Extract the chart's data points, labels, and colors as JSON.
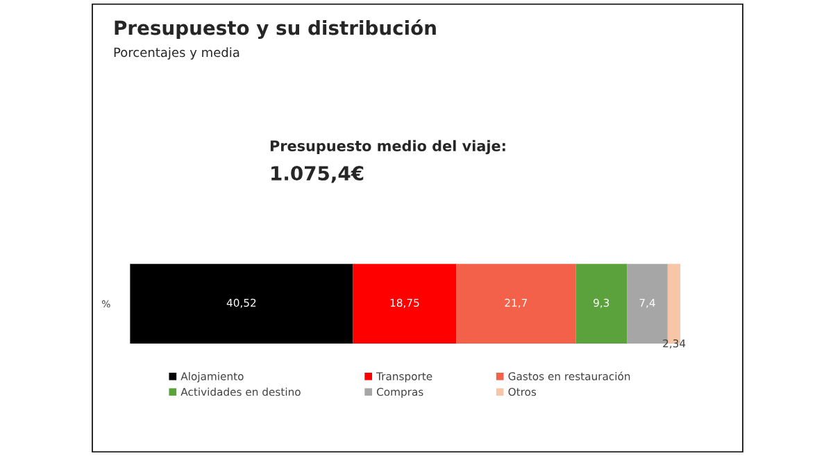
{
  "chart_data": {
    "type": "bar",
    "orientation": "horizontal",
    "stacked": true,
    "title": "Presupuesto y su distribución",
    "subtitle": "Porcentajes y media",
    "annotations": [
      "Presupuesto medio del viaje:",
      "1.075,4€"
    ],
    "categories": [
      "%"
    ],
    "series": [
      {
        "name": "Alojamiento",
        "color": "#000000",
        "values": [
          40.52
        ],
        "value_labels": [
          "40,52"
        ]
      },
      {
        "name": "Transporte",
        "color": "#ff0000",
        "values": [
          18.75
        ],
        "value_labels": [
          "18,75"
        ]
      },
      {
        "name": "Gastos en restauración",
        "color": "#f4614a",
        "values": [
          21.7
        ],
        "value_labels": [
          "21,7"
        ]
      },
      {
        "name": "Actividades en destino",
        "color": "#5ba23c",
        "values": [
          9.3
        ],
        "value_labels": [
          "9,3"
        ]
      },
      {
        "name": "Compras",
        "color": "#a6a6a6",
        "values": [
          7.4
        ],
        "value_labels": [
          "7,4"
        ]
      },
      {
        "name": "Otros",
        "color": "#f6c6a6",
        "values": [
          2.34
        ],
        "value_labels": [
          "2,34"
        ]
      }
    ],
    "legend": "bottom",
    "grid": false,
    "tick_labels": "y"
  }
}
